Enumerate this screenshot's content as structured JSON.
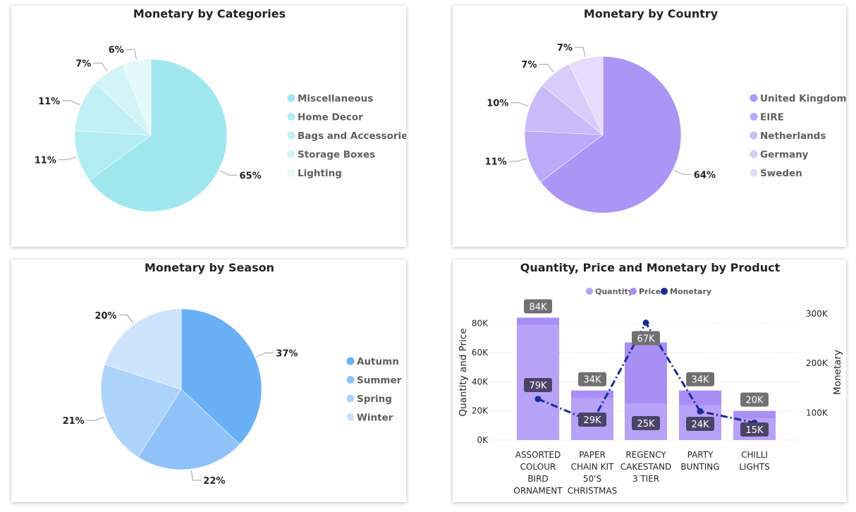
{
  "chart_data": [
    {
      "id": "categories",
      "type": "pie",
      "title": "Monetary by Categories",
      "categories": [
        "Miscellaneous",
        "Home Decor",
        "Bags and Accessories",
        "Storage Boxes",
        "Lighting"
      ],
      "values": [
        65,
        11,
        11,
        7,
        6
      ],
      "labels": [
        "65%",
        "11%",
        "11%",
        "7%",
        "6%"
      ],
      "colors": [
        "#a0e7ef",
        "#b0ecf2",
        "#c1f0f5",
        "#d2f4f8",
        "#e3f8fb"
      ],
      "legend_position": "right"
    },
    {
      "id": "country",
      "type": "pie",
      "title": "Monetary by Country",
      "categories": [
        "United Kingdom",
        "EIRE",
        "Netherlands",
        "Germany",
        "Sweden"
      ],
      "values": [
        64,
        11,
        10,
        7,
        7
      ],
      "labels": [
        "64%",
        "11%",
        "10%",
        "7%",
        "7%"
      ],
      "colors": [
        "#ad95f6",
        "#bca9f8",
        "#cabaf9",
        "#d8ccfb",
        "#e6ddfc"
      ],
      "legend_position": "right"
    },
    {
      "id": "season",
      "type": "pie",
      "title": "Monetary by Season",
      "categories": [
        "Autumn",
        "Summer",
        "Spring",
        "Winter"
      ],
      "values": [
        37,
        22,
        21,
        20
      ],
      "labels": [
        "37%",
        "22%",
        "21%",
        "20%"
      ],
      "colors": [
        "#6ab0f7",
        "#8ec2f9",
        "#aed3fb",
        "#cde3fc"
      ],
      "legend_position": "right"
    },
    {
      "id": "product",
      "type": "bar",
      "title": "Quantity, Price and Monetary by Product",
      "categories": [
        "ASSORTED COLOUR BIRD ORNAMENT",
        "PAPER CHAIN KIT 50'S CHRISTMAS",
        "REGENCY CAKESTAND 3 TIER",
        "PARTY BUNTING",
        "CHILLI LIGHTS"
      ],
      "category_lines": [
        [
          "ASSORTED",
          "COLOUR",
          "BIRD",
          "ORNAMENT"
        ],
        [
          "PAPER",
          "CHAIN KIT",
          "50'S",
          "CHRISTMAS"
        ],
        [
          "REGENCY",
          "CAKESTAND",
          "3 TIER"
        ],
        [
          "PARTY",
          "BUNTING"
        ],
        [
          "CHILLI",
          "LIGHTS"
        ]
      ],
      "series": [
        {
          "name": "Quantity",
          "type": "bar",
          "axis": "left",
          "values": [
            79000,
            29000,
            25000,
            24000,
            15000
          ],
          "labels": [
            "79K",
            "29K",
            "25K",
            "24K",
            "15K"
          ],
          "color": "#b7a2f7"
        },
        {
          "name": "Price",
          "type": "bar",
          "axis": "left",
          "values": [
            84000,
            34000,
            67000,
            34000,
            20000
          ],
          "labels": [
            "84K",
            "34K",
            "67K",
            "34K",
            "20K"
          ],
          "color": "#a98ff5"
        },
        {
          "name": "Monetary",
          "type": "line",
          "axis": "right",
          "values": [
            128000,
            82000,
            282000,
            103000,
            80000
          ],
          "color": "#1a2a9a"
        }
      ],
      "ylabel": "Quantity and Price",
      "ylabel_right": "Monetary",
      "ylim": [
        0,
        90000
      ],
      "y_ticks": [
        0,
        20000,
        40000,
        60000,
        80000
      ],
      "y_tick_labels": [
        "0K",
        "20K",
        "40K",
        "60K",
        "80K"
      ],
      "ylim_right": [
        45000,
        310000
      ],
      "y_ticks_right": [
        100000,
        200000,
        300000
      ],
      "y_tick_labels_right": [
        "100K",
        "200K",
        "300K"
      ],
      "grid": true,
      "legend_position": "top"
    }
  ]
}
